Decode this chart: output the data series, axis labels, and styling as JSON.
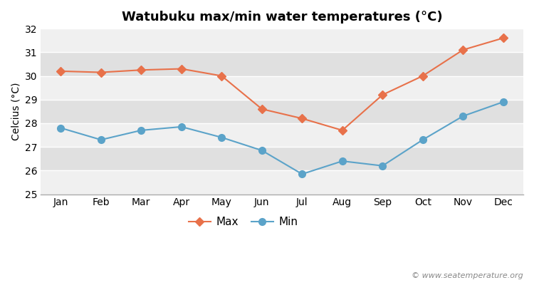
{
  "title": "Watubuku max/min water temperatures (°C)",
  "ylabel": "Celcius (°C)",
  "months": [
    "Jan",
    "Feb",
    "Mar",
    "Apr",
    "May",
    "Jun",
    "Jul",
    "Aug",
    "Sep",
    "Oct",
    "Nov",
    "Dec"
  ],
  "max_values": [
    30.2,
    30.15,
    30.25,
    30.3,
    30.0,
    28.6,
    28.2,
    27.7,
    29.2,
    30.0,
    31.1,
    31.6
  ],
  "min_values": [
    27.8,
    27.3,
    27.7,
    27.85,
    27.4,
    26.85,
    25.85,
    26.4,
    26.2,
    27.3,
    28.3,
    28.9
  ],
  "max_color": "#e8714a",
  "min_color": "#5ba3c9",
  "fig_bg_color": "#ffffff",
  "plot_bg_color": "#e8e8e8",
  "band_color_light": "#f0f0f0",
  "band_color_dark": "#e0e0e0",
  "grid_color": "#ffffff",
  "ylim": [
    25,
    32
  ],
  "yticks": [
    25,
    26,
    27,
    28,
    29,
    30,
    31,
    32
  ],
  "marker_style_max": "D",
  "marker_style_min": "o",
  "line_width": 1.5,
  "marker_size_max": 6,
  "marker_size_min": 7,
  "watermark": "© www.seatemperature.org",
  "legend_labels": [
    "Max",
    "Min"
  ],
  "title_fontsize": 13,
  "label_fontsize": 10,
  "tick_fontsize": 10
}
